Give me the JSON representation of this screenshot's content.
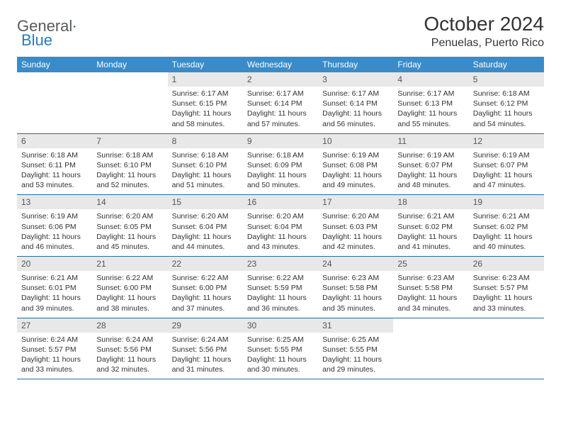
{
  "logo": {
    "word1": "General",
    "word2": "Blue"
  },
  "colors": {
    "header_bg": "#3b8bc8",
    "header_text": "#ffffff",
    "daynum_bg": "#e8e8e8",
    "border": "#2a6a9c",
    "logo_gray": "#5a5a5a",
    "logo_blue": "#2a7ab8"
  },
  "title": "October 2024",
  "location": "Penuelas, Puerto Rico",
  "dow": [
    "Sunday",
    "Monday",
    "Tuesday",
    "Wednesday",
    "Thursday",
    "Friday",
    "Saturday"
  ],
  "weeks": [
    [
      {
        "n": "",
        "sr": "",
        "ss": "",
        "dl": ""
      },
      {
        "n": "",
        "sr": "",
        "ss": "",
        "dl": ""
      },
      {
        "n": "1",
        "sr": "Sunrise: 6:17 AM",
        "ss": "Sunset: 6:15 PM",
        "dl": "Daylight: 11 hours and 58 minutes."
      },
      {
        "n": "2",
        "sr": "Sunrise: 6:17 AM",
        "ss": "Sunset: 6:14 PM",
        "dl": "Daylight: 11 hours and 57 minutes."
      },
      {
        "n": "3",
        "sr": "Sunrise: 6:17 AM",
        "ss": "Sunset: 6:14 PM",
        "dl": "Daylight: 11 hours and 56 minutes."
      },
      {
        "n": "4",
        "sr": "Sunrise: 6:17 AM",
        "ss": "Sunset: 6:13 PM",
        "dl": "Daylight: 11 hours and 55 minutes."
      },
      {
        "n": "5",
        "sr": "Sunrise: 6:18 AM",
        "ss": "Sunset: 6:12 PM",
        "dl": "Daylight: 11 hours and 54 minutes."
      }
    ],
    [
      {
        "n": "6",
        "sr": "Sunrise: 6:18 AM",
        "ss": "Sunset: 6:11 PM",
        "dl": "Daylight: 11 hours and 53 minutes."
      },
      {
        "n": "7",
        "sr": "Sunrise: 6:18 AM",
        "ss": "Sunset: 6:10 PM",
        "dl": "Daylight: 11 hours and 52 minutes."
      },
      {
        "n": "8",
        "sr": "Sunrise: 6:18 AM",
        "ss": "Sunset: 6:10 PM",
        "dl": "Daylight: 11 hours and 51 minutes."
      },
      {
        "n": "9",
        "sr": "Sunrise: 6:18 AM",
        "ss": "Sunset: 6:09 PM",
        "dl": "Daylight: 11 hours and 50 minutes."
      },
      {
        "n": "10",
        "sr": "Sunrise: 6:19 AM",
        "ss": "Sunset: 6:08 PM",
        "dl": "Daylight: 11 hours and 49 minutes."
      },
      {
        "n": "11",
        "sr": "Sunrise: 6:19 AM",
        "ss": "Sunset: 6:07 PM",
        "dl": "Daylight: 11 hours and 48 minutes."
      },
      {
        "n": "12",
        "sr": "Sunrise: 6:19 AM",
        "ss": "Sunset: 6:07 PM",
        "dl": "Daylight: 11 hours and 47 minutes."
      }
    ],
    [
      {
        "n": "13",
        "sr": "Sunrise: 6:19 AM",
        "ss": "Sunset: 6:06 PM",
        "dl": "Daylight: 11 hours and 46 minutes."
      },
      {
        "n": "14",
        "sr": "Sunrise: 6:20 AM",
        "ss": "Sunset: 6:05 PM",
        "dl": "Daylight: 11 hours and 45 minutes."
      },
      {
        "n": "15",
        "sr": "Sunrise: 6:20 AM",
        "ss": "Sunset: 6:04 PM",
        "dl": "Daylight: 11 hours and 44 minutes."
      },
      {
        "n": "16",
        "sr": "Sunrise: 6:20 AM",
        "ss": "Sunset: 6:04 PM",
        "dl": "Daylight: 11 hours and 43 minutes."
      },
      {
        "n": "17",
        "sr": "Sunrise: 6:20 AM",
        "ss": "Sunset: 6:03 PM",
        "dl": "Daylight: 11 hours and 42 minutes."
      },
      {
        "n": "18",
        "sr": "Sunrise: 6:21 AM",
        "ss": "Sunset: 6:02 PM",
        "dl": "Daylight: 11 hours and 41 minutes."
      },
      {
        "n": "19",
        "sr": "Sunrise: 6:21 AM",
        "ss": "Sunset: 6:02 PM",
        "dl": "Daylight: 11 hours and 40 minutes."
      }
    ],
    [
      {
        "n": "20",
        "sr": "Sunrise: 6:21 AM",
        "ss": "Sunset: 6:01 PM",
        "dl": "Daylight: 11 hours and 39 minutes."
      },
      {
        "n": "21",
        "sr": "Sunrise: 6:22 AM",
        "ss": "Sunset: 6:00 PM",
        "dl": "Daylight: 11 hours and 38 minutes."
      },
      {
        "n": "22",
        "sr": "Sunrise: 6:22 AM",
        "ss": "Sunset: 6:00 PM",
        "dl": "Daylight: 11 hours and 37 minutes."
      },
      {
        "n": "23",
        "sr": "Sunrise: 6:22 AM",
        "ss": "Sunset: 5:59 PM",
        "dl": "Daylight: 11 hours and 36 minutes."
      },
      {
        "n": "24",
        "sr": "Sunrise: 6:23 AM",
        "ss": "Sunset: 5:58 PM",
        "dl": "Daylight: 11 hours and 35 minutes."
      },
      {
        "n": "25",
        "sr": "Sunrise: 6:23 AM",
        "ss": "Sunset: 5:58 PM",
        "dl": "Daylight: 11 hours and 34 minutes."
      },
      {
        "n": "26",
        "sr": "Sunrise: 6:23 AM",
        "ss": "Sunset: 5:57 PM",
        "dl": "Daylight: 11 hours and 33 minutes."
      }
    ],
    [
      {
        "n": "27",
        "sr": "Sunrise: 6:24 AM",
        "ss": "Sunset: 5:57 PM",
        "dl": "Daylight: 11 hours and 33 minutes."
      },
      {
        "n": "28",
        "sr": "Sunrise: 6:24 AM",
        "ss": "Sunset: 5:56 PM",
        "dl": "Daylight: 11 hours and 32 minutes."
      },
      {
        "n": "29",
        "sr": "Sunrise: 6:24 AM",
        "ss": "Sunset: 5:56 PM",
        "dl": "Daylight: 11 hours and 31 minutes."
      },
      {
        "n": "30",
        "sr": "Sunrise: 6:25 AM",
        "ss": "Sunset: 5:55 PM",
        "dl": "Daylight: 11 hours and 30 minutes."
      },
      {
        "n": "31",
        "sr": "Sunrise: 6:25 AM",
        "ss": "Sunset: 5:55 PM",
        "dl": "Daylight: 11 hours and 29 minutes."
      },
      {
        "n": "",
        "sr": "",
        "ss": "",
        "dl": ""
      },
      {
        "n": "",
        "sr": "",
        "ss": "",
        "dl": ""
      }
    ]
  ]
}
